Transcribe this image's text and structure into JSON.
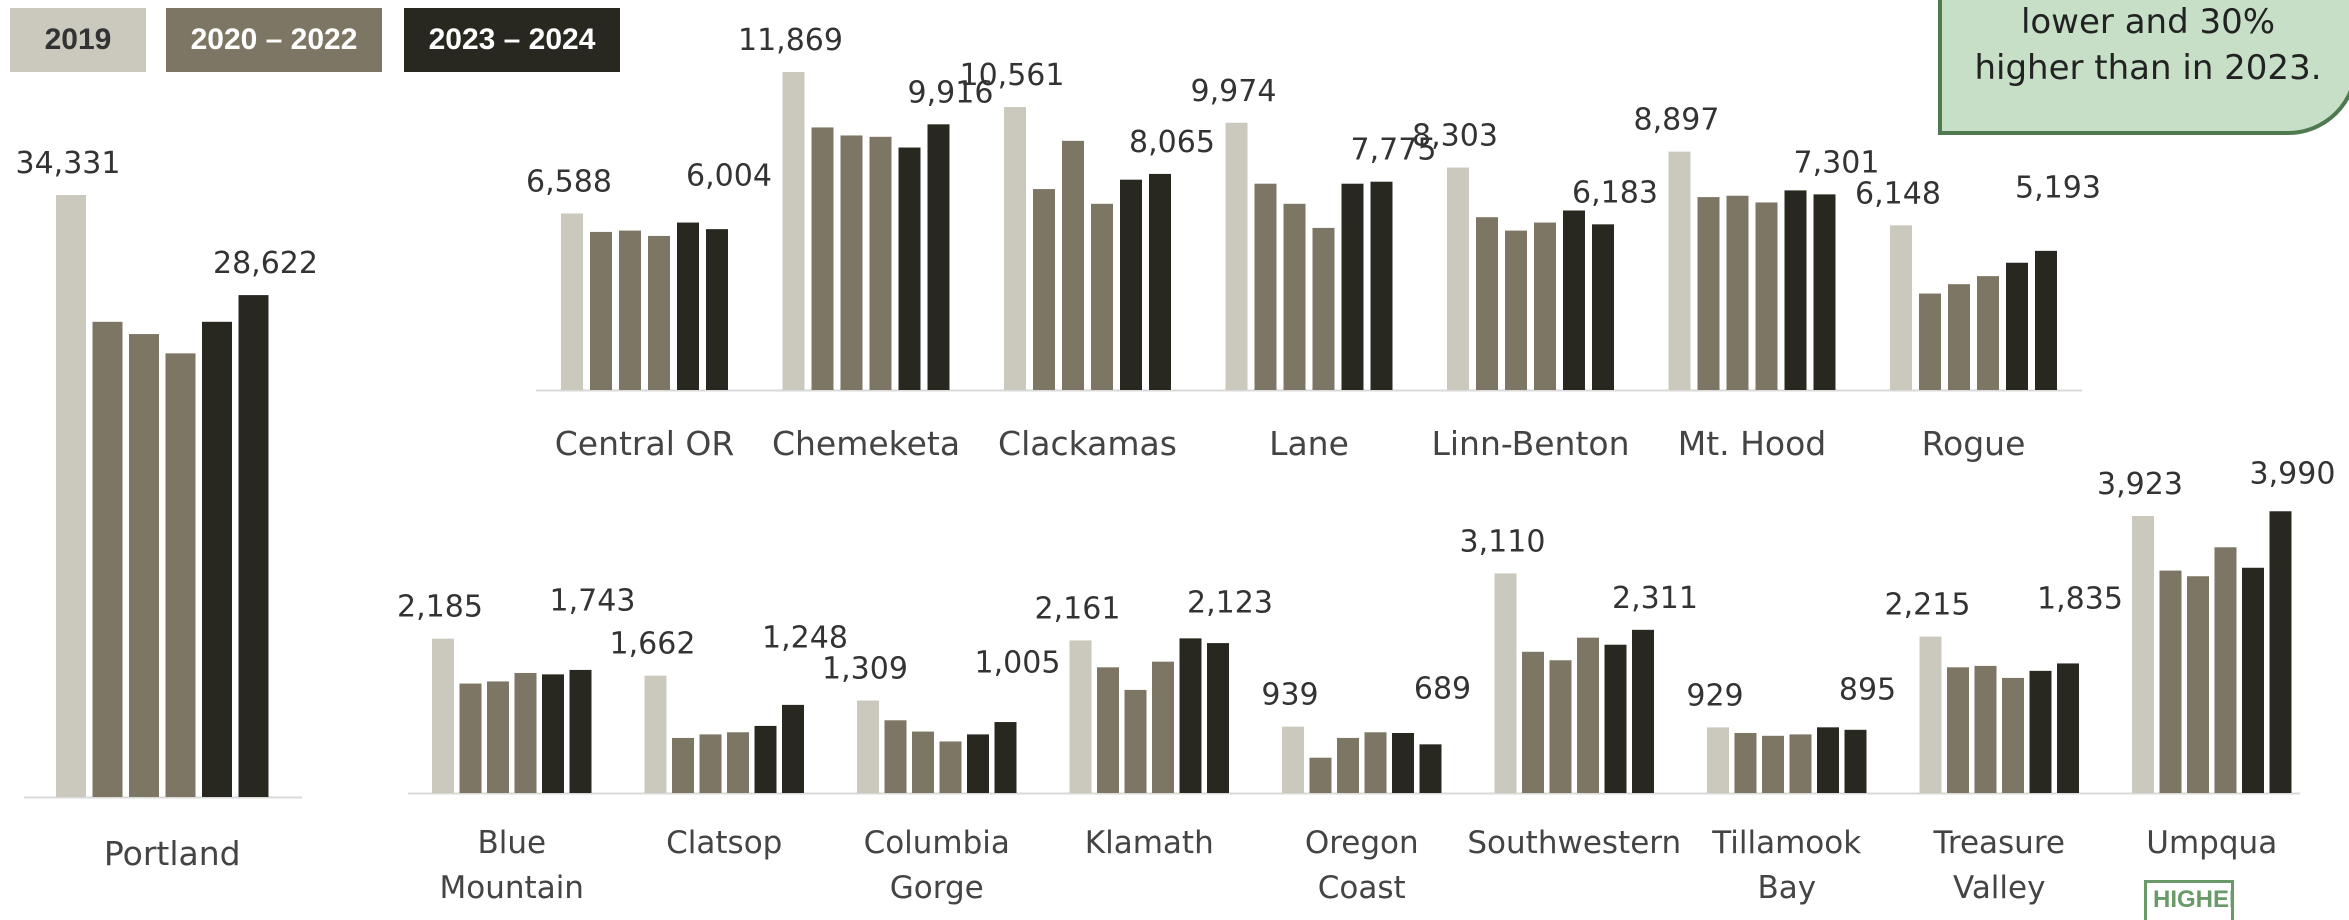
{
  "legend": {
    "items": [
      {
        "label": "2019",
        "color": "#cbc8bd",
        "text_color": "#333333"
      },
      {
        "label": "2020 – 2022",
        "color": "#7e7664",
        "text_color": "#ffffff"
      },
      {
        "label": "2023 – 2024",
        "color": "#282820",
        "text_color": "#ffffff"
      }
    ]
  },
  "callout": {
    "line1": "lower and 30%",
    "line2": "higher than in 2023."
  },
  "logo": {
    "text": "HIGHER"
  },
  "colors": {
    "y2019": "#cbc8bd",
    "y2020_2022": "#7e7664",
    "y2023_2024": "#282820",
    "baseline": "#d9d9d9"
  },
  "chart_data": [
    {
      "type": "bar",
      "panel": "left",
      "categories": [
        "Portland"
      ],
      "series_years": [
        "2019",
        "2020",
        "2021",
        "2022",
        "2023",
        "2024"
      ],
      "values": [
        [
          34331,
          27100,
          26400,
          25300,
          27100,
          28622
        ]
      ],
      "labeled": [
        {
          "index": 0,
          "label": "34,331"
        },
        {
          "index": 5,
          "label": "28,622"
        }
      ]
    },
    {
      "type": "bar",
      "panel": "top-right",
      "categories": [
        "Central OR",
        "Chemeketa",
        "Clackamas",
        "Lane",
        "Linn-Benton",
        "Mt. Hood",
        "Rogue"
      ],
      "series_years": [
        "2019",
        "2020",
        "2021",
        "2022",
        "2023",
        "2024"
      ],
      "values": [
        [
          6588,
          5900,
          5950,
          5750,
          6250,
          6004
        ],
        [
          11869,
          9800,
          9500,
          9450,
          9050,
          9916
        ],
        [
          10561,
          7500,
          9300,
          6950,
          7850,
          8065
        ],
        [
          9974,
          7700,
          6950,
          6050,
          7700,
          7775
        ],
        [
          8303,
          6450,
          5950,
          6250,
          6700,
          6183
        ],
        [
          8897,
          7200,
          7250,
          7000,
          7450,
          7301
        ],
        [
          6148,
          3600,
          3950,
          4250,
          4750,
          5193
        ]
      ],
      "labels": [
        {
          "category": "Central OR",
          "first": "6,588",
          "last": "6,004"
        },
        {
          "category": "Chemeketa",
          "first": "11,869",
          "last": "9,916"
        },
        {
          "category": "Clackamas",
          "first": "10,561",
          "last": "8,065"
        },
        {
          "category": "Lane",
          "first": "9,974",
          "last": "7,775"
        },
        {
          "category": "Linn-Benton",
          "first": "8,303",
          "last": "6,183"
        },
        {
          "category": "Mt. Hood",
          "first": "8,897",
          "last": "7,301"
        },
        {
          "category": "Rogue",
          "first": "6,148",
          "last": "5,193"
        }
      ]
    },
    {
      "type": "bar",
      "panel": "bottom-right",
      "categories": [
        "Blue Mountain",
        "Clatsop",
        "Columbia Gorge",
        "Klamath",
        "Oregon Coast",
        "Southwestern",
        "Tillamook Bay",
        "Treasure Valley",
        "Umpqua"
      ],
      "category_lines": [
        [
          "Blue",
          "Mountain"
        ],
        [
          "Clatsop"
        ],
        [
          "Columbia",
          "Gorge"
        ],
        [
          "Klamath"
        ],
        [
          "Oregon",
          "Coast"
        ],
        [
          "Southwestern"
        ],
        [
          "Tillamook",
          "Bay"
        ],
        [
          "Treasure",
          "Valley"
        ],
        [
          "Umpqua"
        ]
      ],
      "series_years": [
        "2019",
        "2020",
        "2021",
        "2022",
        "2023",
        "2024"
      ],
      "values": [
        [
          2185,
          1550,
          1580,
          1700,
          1680,
          1743
        ],
        [
          1662,
          780,
          830,
          860,
          950,
          1248
        ],
        [
          1309,
          1030,
          870,
          730,
          830,
          1005
        ],
        [
          2161,
          1780,
          1460,
          1860,
          2190,
          2123
        ],
        [
          939,
          500,
          780,
          860,
          850,
          689
        ],
        [
          3110,
          2000,
          1880,
          2200,
          2100,
          2311
        ],
        [
          929,
          850,
          810,
          830,
          930,
          895
        ],
        [
          2215,
          1780,
          1800,
          1630,
          1730,
          1835
        ],
        [
          3923,
          3150,
          3070,
          3480,
          3190,
          3990
        ]
      ],
      "labels": [
        {
          "category": "Blue Mountain",
          "first": "2,185",
          "last": "1,743"
        },
        {
          "category": "Clatsop",
          "first": "1,662",
          "last": "1,248"
        },
        {
          "category": "Columbia Gorge",
          "first": "1,309",
          "last": "1,005"
        },
        {
          "category": "Klamath",
          "first": "2,161",
          "last": "2,123"
        },
        {
          "category": "Oregon Coast",
          "first": "939",
          "last": "689"
        },
        {
          "category": "Southwestern",
          "first": "3,110",
          "last": "2,311"
        },
        {
          "category": "Tillamook Bay",
          "first": "929",
          "last": "895"
        },
        {
          "category": "Treasure Valley",
          "first": "2,215",
          "last": "1,835"
        },
        {
          "category": "Umpqua",
          "first": "3,923",
          "last": "3,990"
        }
      ]
    }
  ]
}
